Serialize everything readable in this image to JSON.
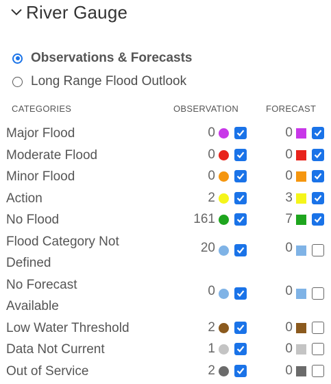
{
  "panel": {
    "title": "River Gauge",
    "chevron_icon": "chevron-down-icon"
  },
  "view_options": [
    {
      "label": "Observations & Forecasts",
      "selected": true
    },
    {
      "label": "Long Range Flood Outlook",
      "selected": false
    }
  ],
  "columns": {
    "categories": "CATEGORIES",
    "observation": "OBSERVATION",
    "forecast": "FORECAST"
  },
  "rows": [
    {
      "name": "Major Flood",
      "obs_count": "0",
      "obs_color": "#c837e8",
      "obs_checked": true,
      "fc_count": "0",
      "fc_color": "#c837e8",
      "fc_checked": true
    },
    {
      "name": "Moderate Flood",
      "obs_count": "0",
      "obs_color": "#e8231b",
      "obs_checked": true,
      "fc_count": "0",
      "fc_color": "#e8231b",
      "fc_checked": true
    },
    {
      "name": "Minor Flood",
      "obs_count": "0",
      "obs_color": "#f5960f",
      "obs_checked": true,
      "fc_count": "0",
      "fc_color": "#f5960f",
      "fc_checked": true
    },
    {
      "name": "Action",
      "obs_count": "2",
      "obs_color": "#f5f51a",
      "obs_checked": true,
      "fc_count": "3",
      "fc_color": "#f5f51a",
      "fc_checked": true
    },
    {
      "name": "No Flood",
      "obs_count": "161",
      "obs_color": "#1ea51e",
      "obs_checked": true,
      "fc_count": "7",
      "fc_color": "#1ea51e",
      "fc_checked": true
    },
    {
      "name_line1": "Flood Category Not",
      "name_line2": "Defined",
      "obs_count": "20",
      "obs_color": "#7fb3e6",
      "obs_checked": true,
      "fc_count": "0",
      "fc_color": "#7fb3e6",
      "fc_checked": false
    },
    {
      "name_line1": "No Forecast",
      "name_line2": "Available",
      "obs_count": "0",
      "obs_color": "#7fb3e6",
      "obs_checked": true,
      "fc_count": "0",
      "fc_color": "#7fb3e6",
      "fc_checked": false
    },
    {
      "name": "Low Water Threshold",
      "obs_count": "2",
      "obs_color": "#8b5a1e",
      "obs_checked": true,
      "fc_count": "0",
      "fc_color": "#8b5a1e",
      "fc_checked": false
    },
    {
      "name": "Data Not Current",
      "obs_count": "1",
      "obs_color": "#c4c4c4",
      "obs_checked": true,
      "fc_count": "0",
      "fc_color": "#c4c4c4",
      "fc_checked": false
    },
    {
      "name": "Out of Service",
      "obs_count": "2",
      "obs_color": "#6b6b6b",
      "obs_checked": true,
      "fc_count": "0",
      "fc_color": "#6b6b6b",
      "fc_checked": false
    }
  ],
  "accent": "#1a73e8"
}
